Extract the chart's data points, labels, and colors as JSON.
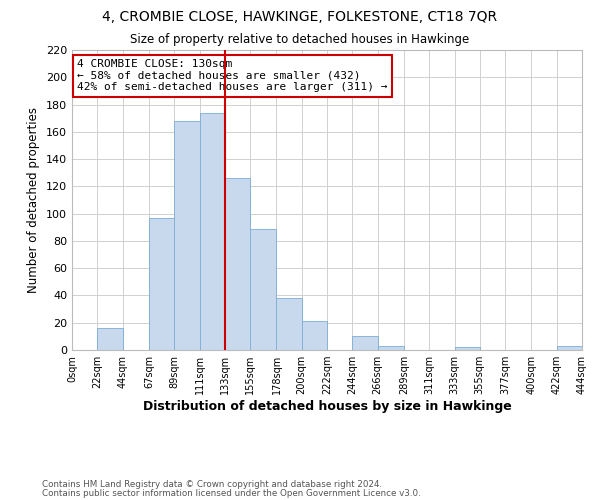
{
  "title": "4, CROMBIE CLOSE, HAWKINGE, FOLKESTONE, CT18 7QR",
  "subtitle": "Size of property relative to detached houses in Hawkinge",
  "xlabel": "Distribution of detached houses by size in Hawkinge",
  "ylabel": "Number of detached properties",
  "bar_left_edges": [
    0,
    22,
    44,
    67,
    89,
    111,
    133,
    155,
    178,
    200,
    222,
    244,
    266,
    289,
    311,
    333,
    355,
    377,
    400,
    422
  ],
  "bar_widths": [
    22,
    22,
    23,
    22,
    22,
    22,
    22,
    23,
    22,
    22,
    22,
    22,
    23,
    22,
    22,
    22,
    22,
    23,
    22,
    22
  ],
  "bar_heights": [
    0,
    16,
    0,
    97,
    168,
    174,
    126,
    89,
    38,
    21,
    0,
    10,
    3,
    0,
    0,
    2,
    0,
    0,
    0,
    3
  ],
  "bar_color": "#c8d9ee",
  "bar_edge_color": "#7dadd4",
  "vline_x": 133,
  "vline_color": "#cc0000",
  "annotation_text": "4 CROMBIE CLOSE: 130sqm\n← 58% of detached houses are smaller (432)\n42% of semi-detached houses are larger (311) →",
  "annotation_box_color": "white",
  "annotation_box_edge_color": "#cc0000",
  "xlim": [
    0,
    444
  ],
  "ylim": [
    0,
    220
  ],
  "yticks": [
    0,
    20,
    40,
    60,
    80,
    100,
    120,
    140,
    160,
    180,
    200,
    220
  ],
  "xtick_labels": [
    "0sqm",
    "22sqm",
    "44sqm",
    "67sqm",
    "89sqm",
    "111sqm",
    "133sqm",
    "155sqm",
    "178sqm",
    "200sqm",
    "222sqm",
    "244sqm",
    "266sqm",
    "289sqm",
    "311sqm",
    "333sqm",
    "355sqm",
    "377sqm",
    "400sqm",
    "422sqm",
    "444sqm"
  ],
  "xtick_positions": [
    0,
    22,
    44,
    67,
    89,
    111,
    133,
    155,
    178,
    200,
    222,
    244,
    266,
    289,
    311,
    333,
    355,
    377,
    400,
    422,
    444
  ],
  "footer_line1": "Contains HM Land Registry data © Crown copyright and database right 2024.",
  "footer_line2": "Contains public sector information licensed under the Open Government Licence v3.0.",
  "grid_color": "#d0d0d0",
  "background_color": "#ffffff"
}
